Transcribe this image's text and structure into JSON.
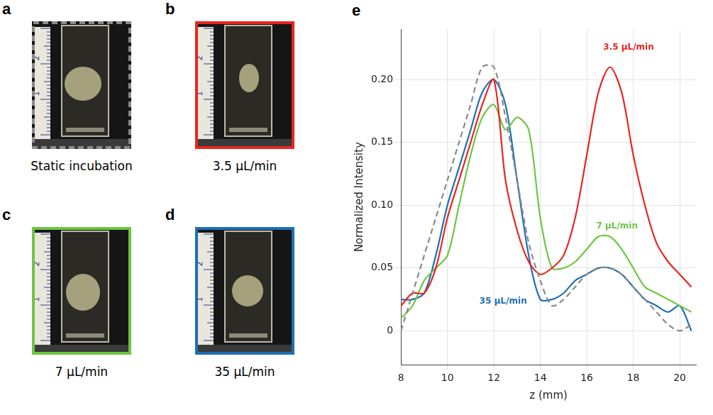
{
  "photo_panels": [
    {
      "label": "a",
      "caption": "Static incubation",
      "color": "#8a8a8a",
      "line_style": "dashed"
    },
    {
      "label": "b",
      "caption": "3.5 µL/min",
      "color": "#e8251f",
      "line_style": "solid"
    },
    {
      "label": "c",
      "caption": "7 µL/min",
      "color": "#6cc644",
      "line_style": "solid"
    },
    {
      "label": "d",
      "caption": "35 µL/min",
      "color": "#1f6fb4",
      "line_style": "solid"
    }
  ],
  "ruler_ticks": [
    1,
    2
  ],
  "chart_data": {
    "panel_label": "e",
    "type": "line",
    "x_label": "z (mm)",
    "y_label": "Normalized Intensity",
    "x": [
      8,
      8.5,
      9,
      9.5,
      10,
      10.5,
      11,
      11.5,
      12,
      12.5,
      13,
      13.5,
      14,
      14.5,
      15,
      15.5,
      16,
      16.5,
      17,
      17.5,
      18,
      18.5,
      19,
      19.5,
      20,
      20.5
    ],
    "series": [
      {
        "color": "#8a8a8a",
        "line_style": "dashed",
        "values": [
          0.0,
          0.03,
          0.06,
          0.09,
          0.12,
          0.15,
          0.18,
          0.21,
          0.21,
          0.17,
          0.12,
          0.07,
          0.04,
          0.02,
          0.025,
          0.035,
          0.045,
          0.05,
          0.05,
          0.045,
          0.035,
          0.025,
          0.015,
          0.005,
          0.0,
          0.005
        ]
      },
      {
        "color": "#e8251f",
        "line_style": "solid",
        "values": [
          0.02,
          0.03,
          0.03,
          0.05,
          0.09,
          0.12,
          0.15,
          0.18,
          0.2,
          0.12,
          0.08,
          0.055,
          0.045,
          0.05,
          0.06,
          0.09,
          0.14,
          0.19,
          0.21,
          0.19,
          0.14,
          0.1,
          0.07,
          0.055,
          0.045,
          0.035
        ]
      },
      {
        "color": "#6cc644",
        "line_style": "solid",
        "values": [
          0.01,
          0.02,
          0.04,
          0.05,
          0.06,
          0.1,
          0.14,
          0.17,
          0.18,
          0.16,
          0.17,
          0.16,
          0.09,
          0.05,
          0.05,
          0.055,
          0.065,
          0.075,
          0.075,
          0.065,
          0.05,
          0.035,
          0.03,
          0.025,
          0.02,
          0.015
        ]
      },
      {
        "color": "#1f6fb4",
        "line_style": "solid",
        "values": [
          0.025,
          0.025,
          0.03,
          0.06,
          0.1,
          0.13,
          0.16,
          0.19,
          0.2,
          0.18,
          0.12,
          0.06,
          0.025,
          0.025,
          0.03,
          0.04,
          0.045,
          0.05,
          0.05,
          0.045,
          0.035,
          0.025,
          0.02,
          0.015,
          0.02,
          0.0
        ]
      }
    ],
    "annotations": [
      {
        "text": "3.5 µL/min",
        "x": 17.8,
        "y": 0.222,
        "color": "#e8251f"
      },
      {
        "text": "7 µL/min",
        "x": 17.3,
        "y": 0.08,
        "color": "#6cc644"
      },
      {
        "text": "35 µL/min",
        "x": 12.4,
        "y": 0.02,
        "color": "#1f6fb4"
      }
    ],
    "xlim": [
      8,
      20.7
    ],
    "xticks": [
      8,
      10,
      12,
      14,
      16,
      18,
      20
    ],
    "ylim": [
      -0.027,
      0.24
    ],
    "yticks": [
      0,
      0.05,
      0.1,
      0.15,
      0.2
    ],
    "grid": true
  }
}
